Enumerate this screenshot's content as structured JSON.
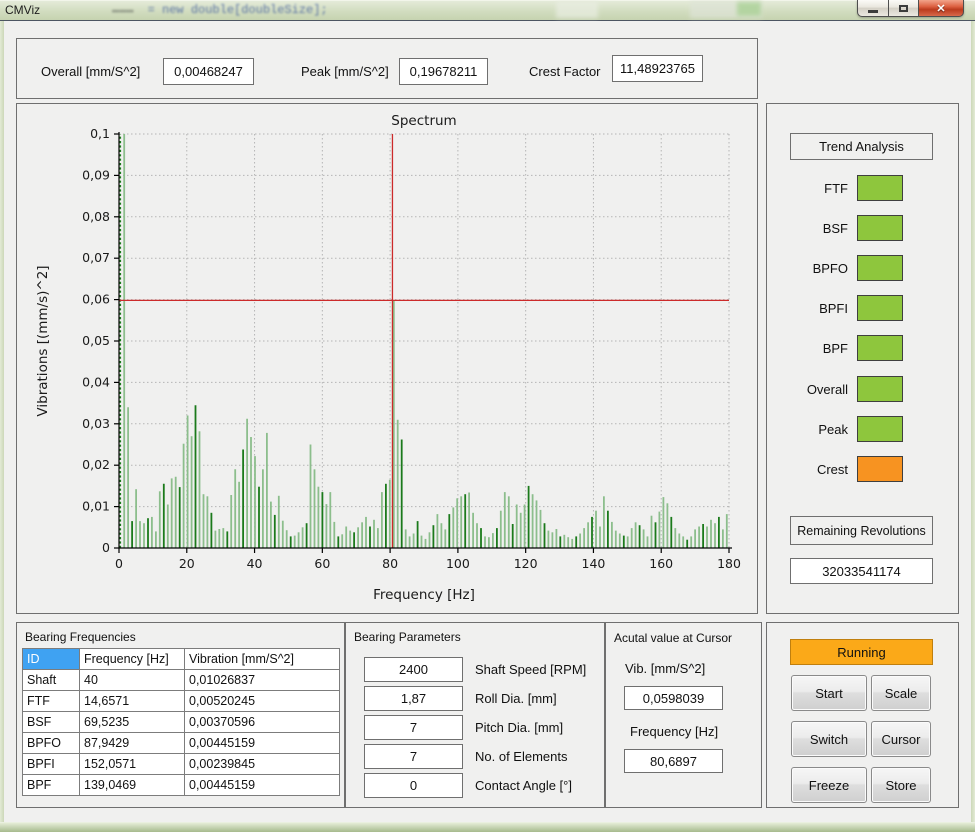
{
  "window": {
    "title": "CMViz",
    "ghost_text": "= new double[doubleSize];"
  },
  "stats": {
    "overall_label": "Overall [mm/S^2]",
    "overall_value": "0,00468247",
    "peak_label": "Peak [mm/S^2]",
    "peak_value": "0,19678211",
    "crest_label": "Crest Factor",
    "crest_value": "11,48923765"
  },
  "chart_data": {
    "type": "bar",
    "title": "Spectrum",
    "xlabel": "Frequency [Hz]",
    "ylabel": "Vibrations [(mm/s)^2]",
    "xlim": [
      0,
      180
    ],
    "ylim": [
      0,
      0.1
    ],
    "x_ticks": [
      0,
      20,
      40,
      60,
      80,
      100,
      120,
      140,
      160,
      180
    ],
    "y_ticks": [
      0,
      0.01,
      0.02,
      0.03,
      0.04,
      0.05,
      0.06,
      0.07,
      0.08,
      0.09,
      0.1
    ],
    "y_tick_labels": [
      "0",
      "0,01",
      "0,02",
      "0,03",
      "0,04",
      "0,05",
      "0,06",
      "0,07",
      "0,08",
      "0,09",
      "0,1"
    ],
    "grid": true,
    "legend": "none",
    "freq_step": 1.17,
    "values": [
      0.197,
      0.12,
      0.034,
      0.0065,
      0.0142,
      0.0065,
      0.006,
      0.0072,
      0.0075,
      0.004,
      0.0137,
      0.0155,
      0.0105,
      0.0168,
      0.0172,
      0.0147,
      0.0252,
      0.032,
      0.027,
      0.0345,
      0.0282,
      0.013,
      0.0125,
      0.0085,
      0.0042,
      0.0046,
      0.0048,
      0.004,
      0.0128,
      0.019,
      0.016,
      0.0238,
      0.0312,
      0.0268,
      0.0222,
      0.0148,
      0.019,
      0.0278,
      0.0112,
      0.008,
      0.0126,
      0.0066,
      0.0043,
      0.0028,
      0.003,
      0.0038,
      0.005,
      0.006,
      0.025,
      0.019,
      0.0148,
      0.0135,
      0.0106,
      0.0135,
      0.0063,
      0.0028,
      0.0033,
      0.0052,
      0.0042,
      0.0038,
      0.005,
      0.0062,
      0.0075,
      0.0052,
      0.0068,
      0.0048,
      0.0135,
      0.0155,
      0.0165,
      0.0598,
      0.031,
      0.0262,
      0.0045,
      0.0028,
      0.0035,
      0.0065,
      0.003,
      0.0022,
      0.0038,
      0.0055,
      0.0082,
      0.006,
      0.0045,
      0.0082,
      0.0098,
      0.012,
      0.0125,
      0.013,
      0.0134,
      0.0085,
      0.006,
      0.0048,
      0.0028,
      0.0026,
      0.0036,
      0.0048,
      0.009,
      0.0135,
      0.0125,
      0.0058,
      0.0105,
      0.0085,
      0.0105,
      0.015,
      0.013,
      0.0115,
      0.0092,
      0.006,
      0.0042,
      0.0038,
      0.0046,
      0.0028,
      0.0032,
      0.0026,
      0.0022,
      0.0028,
      0.0035,
      0.0048,
      0.0062,
      0.0075,
      0.009,
      0.0052,
      0.0125,
      0.009,
      0.0063,
      0.0042,
      0.0035,
      0.003,
      0.0028,
      0.0048,
      0.0062,
      0.0055,
      0.0045,
      0.0028,
      0.0078,
      0.0062,
      0.0088,
      0.0123,
      0.0108,
      0.0075,
      0.0048,
      0.0035,
      0.0028,
      0.002,
      0.0028,
      0.0045,
      0.0052,
      0.0058,
      0.0052,
      0.0068,
      0.006,
      0.0075,
      0.0045,
      0.0082
    ],
    "cursor": {
      "frequency": 80.6897,
      "vibration": 0.0598039
    },
    "colors": {
      "bar_light": "#8cbe8c",
      "bar_dark": "#1b7a1b",
      "cursor": "#cc2a2a",
      "grid": "#b5b5b5",
      "axis": "#000000"
    }
  },
  "trend": {
    "title": "Trend Analysis",
    "indicators": [
      {
        "label": "FTF",
        "color": "#8ec63d"
      },
      {
        "label": "BSF",
        "color": "#8ec63d"
      },
      {
        "label": "BPFO",
        "color": "#8ec63d"
      },
      {
        "label": "BPFI",
        "color": "#8ec63d"
      },
      {
        "label": "BPF",
        "color": "#8ec63d"
      },
      {
        "label": "Overall",
        "color": "#8ec63d"
      },
      {
        "label": "Peak",
        "color": "#8ec63d"
      },
      {
        "label": "Crest",
        "color": "#f79321"
      }
    ],
    "remaining_label": "Remaining Revolutions",
    "remaining_value": "32033541174"
  },
  "bearing_frequencies": {
    "title": "Bearing Frequencies",
    "columns": [
      "ID",
      "Frequency [Hz]",
      "Vibration [mm/S^2]"
    ],
    "rows": [
      [
        "Shaft",
        "40",
        "0,01026837"
      ],
      [
        "FTF",
        "14,6571",
        "0,00520245"
      ],
      [
        "BSF",
        "69,5235",
        "0,00370596"
      ],
      [
        "BPFO",
        "87,9429",
        "0,00445159"
      ],
      [
        "BPFI",
        "152,0571",
        "0,00239845"
      ],
      [
        "BPF",
        "139,0469",
        "0,00445159"
      ]
    ]
  },
  "bearing_parameters": {
    "title": "Bearing Parameters",
    "fields": [
      {
        "value": "2400",
        "label": "Shaft Speed [RPM]"
      },
      {
        "value": "1,87",
        "label": "Roll Dia. [mm]"
      },
      {
        "value": "7",
        "label": "Pitch Dia. [mm]"
      },
      {
        "value": "7",
        "label": "No. of Elements"
      },
      {
        "value": "0",
        "label": "Contact Angle [°]"
      }
    ]
  },
  "cursor_panel": {
    "title": "Acutal value at Cursor",
    "vib_label": "Vib. [mm/S^2]",
    "vib_value": "0,0598039",
    "freq_label": "Frequency [Hz]",
    "freq_value": "80,6897"
  },
  "controls": {
    "status": "Running",
    "status_color": "#fba918",
    "buttons": [
      "Start",
      "Scale",
      "Switch",
      "Cursor",
      "Freeze",
      "Store"
    ]
  }
}
